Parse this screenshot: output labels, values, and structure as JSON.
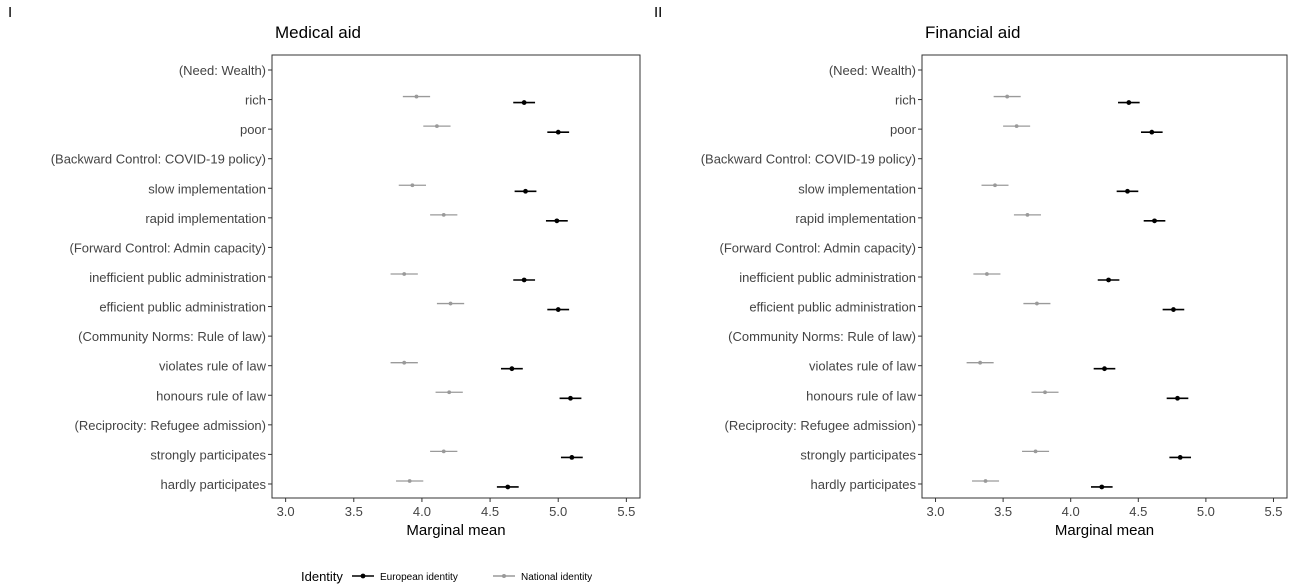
{
  "figure": {
    "legend": {
      "title": "Identity",
      "entries": [
        {
          "label": "European identity",
          "color": "#000000"
        },
        {
          "label": "National identity",
          "color": "#9a9a9a"
        }
      ]
    }
  },
  "chart_data": [
    {
      "type": "scatter",
      "panel_label": "I",
      "title": "Medical aid",
      "xlabel": "Marginal mean",
      "ylabel": "",
      "xlim": [
        2.9,
        5.6
      ],
      "xticks": [
        "3.0",
        "3.5",
        "4.0",
        "4.5",
        "5.0",
        "5.5"
      ],
      "grid": false,
      "categories": [
        "(Need: Wealth)",
        "rich",
        "poor",
        "(Backward Control: COVID-19 policy)",
        "slow implementation",
        "rapid implementation",
        "(Forward Control: Admin capacity)",
        "inefficient public administration",
        "efficient public administration",
        "(Community Norms: Rule of law)",
        "violates rule of law",
        "honours rule of law",
        "(Reciprocity: Refugee admission)",
        "strongly participates",
        "hardly participates"
      ],
      "series": [
        {
          "name": "European identity",
          "color": "#000000",
          "values": [
            null,
            4.75,
            5.0,
            null,
            4.76,
            4.99,
            null,
            4.75,
            5.0,
            null,
            4.66,
            5.09,
            null,
            5.1,
            4.63
          ],
          "ci_low": [
            null,
            4.67,
            4.92,
            null,
            4.68,
            4.91,
            null,
            4.67,
            4.92,
            null,
            4.58,
            5.01,
            null,
            5.02,
            4.55
          ],
          "ci_high": [
            null,
            4.83,
            5.08,
            null,
            4.84,
            5.07,
            null,
            4.83,
            5.08,
            null,
            4.74,
            5.17,
            null,
            5.18,
            4.71
          ]
        },
        {
          "name": "National identity",
          "color": "#9a9a9a",
          "values": [
            null,
            3.96,
            4.11,
            null,
            3.93,
            4.16,
            null,
            3.87,
            4.21,
            null,
            3.87,
            4.2,
            null,
            4.16,
            3.91
          ],
          "ci_low": [
            null,
            3.86,
            4.01,
            null,
            3.83,
            4.06,
            null,
            3.77,
            4.11,
            null,
            3.77,
            4.1,
            null,
            4.06,
            3.81
          ],
          "ci_high": [
            null,
            4.06,
            4.21,
            null,
            4.03,
            4.26,
            null,
            3.97,
            4.31,
            null,
            3.97,
            4.3,
            null,
            4.26,
            4.01
          ]
        }
      ]
    },
    {
      "type": "scatter",
      "panel_label": "II",
      "title": "Financial aid",
      "xlabel": "Marginal mean",
      "ylabel": "",
      "xlim": [
        2.9,
        5.6
      ],
      "xticks": [
        "3.0",
        "3.5",
        "4.0",
        "4.5",
        "5.0",
        "5.5"
      ],
      "grid": false,
      "categories": [
        "(Need: Wealth)",
        "rich",
        "poor",
        "(Backward Control: COVID-19 policy)",
        "slow implementation",
        "rapid implementation",
        "(Forward Control: Admin capacity)",
        "inefficient public administration",
        "efficient public administration",
        "(Community Norms: Rule of law)",
        "violates rule of law",
        "honours rule of law",
        "(Reciprocity: Refugee admission)",
        "strongly participates",
        "hardly participates"
      ],
      "series": [
        {
          "name": "European identity",
          "color": "#000000",
          "values": [
            null,
            4.43,
            4.6,
            null,
            4.42,
            4.62,
            null,
            4.28,
            4.76,
            null,
            4.25,
            4.79,
            null,
            4.81,
            4.23
          ],
          "ci_low": [
            null,
            4.35,
            4.52,
            null,
            4.34,
            4.54,
            null,
            4.2,
            4.68,
            null,
            4.17,
            4.71,
            null,
            4.73,
            4.15
          ],
          "ci_high": [
            null,
            4.51,
            4.68,
            null,
            4.5,
            4.7,
            null,
            4.36,
            4.84,
            null,
            4.33,
            4.87,
            null,
            4.89,
            4.31
          ]
        },
        {
          "name": "National identity",
          "color": "#9a9a9a",
          "values": [
            null,
            3.53,
            3.6,
            null,
            3.44,
            3.68,
            null,
            3.38,
            3.75,
            null,
            3.33,
            3.81,
            null,
            3.74,
            3.37
          ],
          "ci_low": [
            null,
            3.43,
            3.5,
            null,
            3.34,
            3.58,
            null,
            3.28,
            3.65,
            null,
            3.23,
            3.71,
            null,
            3.64,
            3.27
          ],
          "ci_high": [
            null,
            3.63,
            3.7,
            null,
            3.54,
            3.78,
            null,
            3.48,
            3.85,
            null,
            3.43,
            3.91,
            null,
            3.84,
            3.47
          ]
        }
      ]
    }
  ]
}
